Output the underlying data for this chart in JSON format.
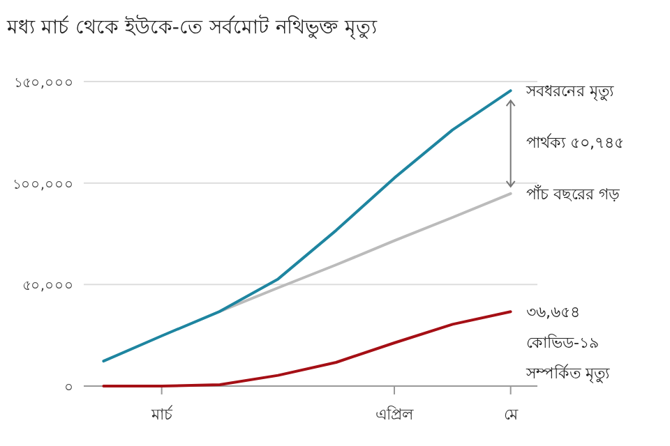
{
  "chart_data": {
    "type": "line",
    "title": "মধ্য মার্চ থেকে ইউকে-তে সর্বমোট নথিভুক্ত মৃত্যু",
    "categories": [
      null,
      "মার্চ",
      null,
      null,
      null,
      "এপ্রিল",
      null,
      "মে"
    ],
    "ylim": [
      0,
      150000
    ],
    "yticks": [
      {
        "value": 0,
        "label": "০"
      },
      {
        "value": 50000,
        "label": "৫০,০০০"
      },
      {
        "value": 100000,
        "label": "১০০,০০০"
      },
      {
        "value": 150000,
        "label": "১৫০,০০০"
      }
    ],
    "grid": "y",
    "marker": "none",
    "line_style": "solid",
    "series": [
      {
        "name": "পাঁচ বছরের গড়",
        "color": "#bbbbbb",
        "values": [
          null,
          null,
          36800,
          48400,
          59700,
          71600,
          83100,
          94800
        ]
      },
      {
        "name": "সবধরনের মৃত্যু",
        "color": "#1e85a0",
        "values": [
          12300,
          24700,
          36800,
          52700,
          76700,
          102500,
          126200,
          145500
        ]
      },
      {
        "name": "কোভিড-১৯ সম্পর্কিত মৃত্যু",
        "color": "#a50f15",
        "values": [
          0,
          0,
          700,
          5300,
          11700,
          21300,
          30400,
          36654
        ],
        "value_labels": [
          null,
          null,
          null,
          null,
          null,
          null,
          null,
          "৩৬,৬৫৪"
        ]
      }
    ],
    "annotations": [
      "পার্থক্য ৫০,৭৪৫"
    ]
  }
}
